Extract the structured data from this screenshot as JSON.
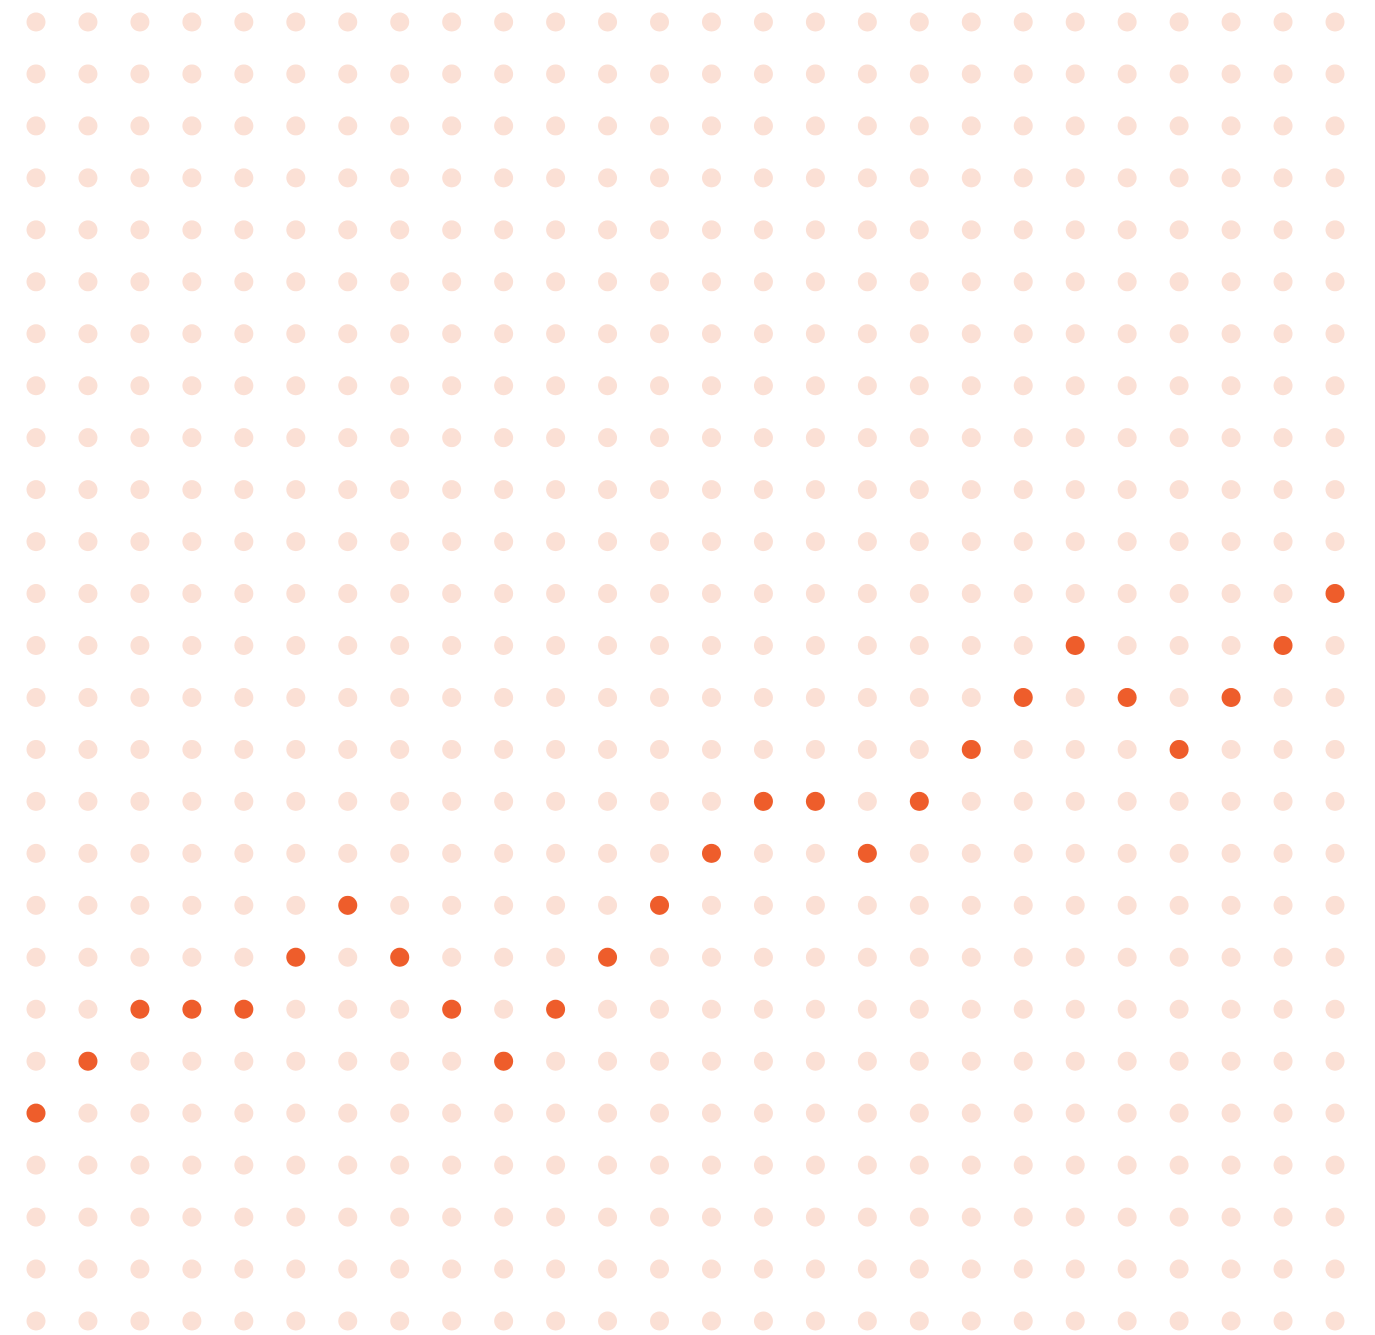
{
  "chart_data": {
    "type": "scatter",
    "title": "",
    "xlabel": "",
    "ylabel": "",
    "grid_columns": 26,
    "grid_rows": 26,
    "xlim": [
      0,
      25
    ],
    "ylim": [
      0,
      25
    ],
    "grid": true,
    "legend": "none",
    "series": [
      {
        "x": [
          0,
          1,
          2,
          3,
          4,
          5,
          6,
          7,
          8,
          9,
          10,
          11,
          12,
          13,
          14,
          15,
          16,
          17,
          18,
          19,
          20,
          21,
          22,
          23,
          24,
          25
        ],
        "y": [
          4,
          5,
          6,
          6,
          6,
          7,
          8,
          7,
          6,
          5,
          6,
          7,
          8,
          9,
          10,
          10,
          9,
          10,
          11,
          12,
          13,
          12,
          11,
          12,
          13,
          14
        ]
      }
    ]
  },
  "colors": {
    "background": "#ffffff",
    "grid_dot": "#fbe0d5",
    "highlight_dot": "#ee5d2b"
  }
}
